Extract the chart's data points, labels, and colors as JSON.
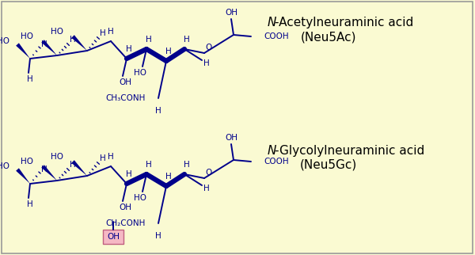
{
  "background_color": "#FAFAD2",
  "border_color": "#999999",
  "molecule_color": "#00008B",
  "highlight_color": "#F5B8C4",
  "highlight_border": "#C06080",
  "title1_italic": "N",
  "title1_rest": "-Acetylneuraminic acid",
  "title1_sub": "(Neu5Ac)",
  "title2_italic": "N",
  "title2_rest": "-Glycolylneuraminic acid",
  "title2_sub": "(Neu5Gc)",
  "figsize": [
    6.0,
    3.22
  ],
  "dpi": 100
}
